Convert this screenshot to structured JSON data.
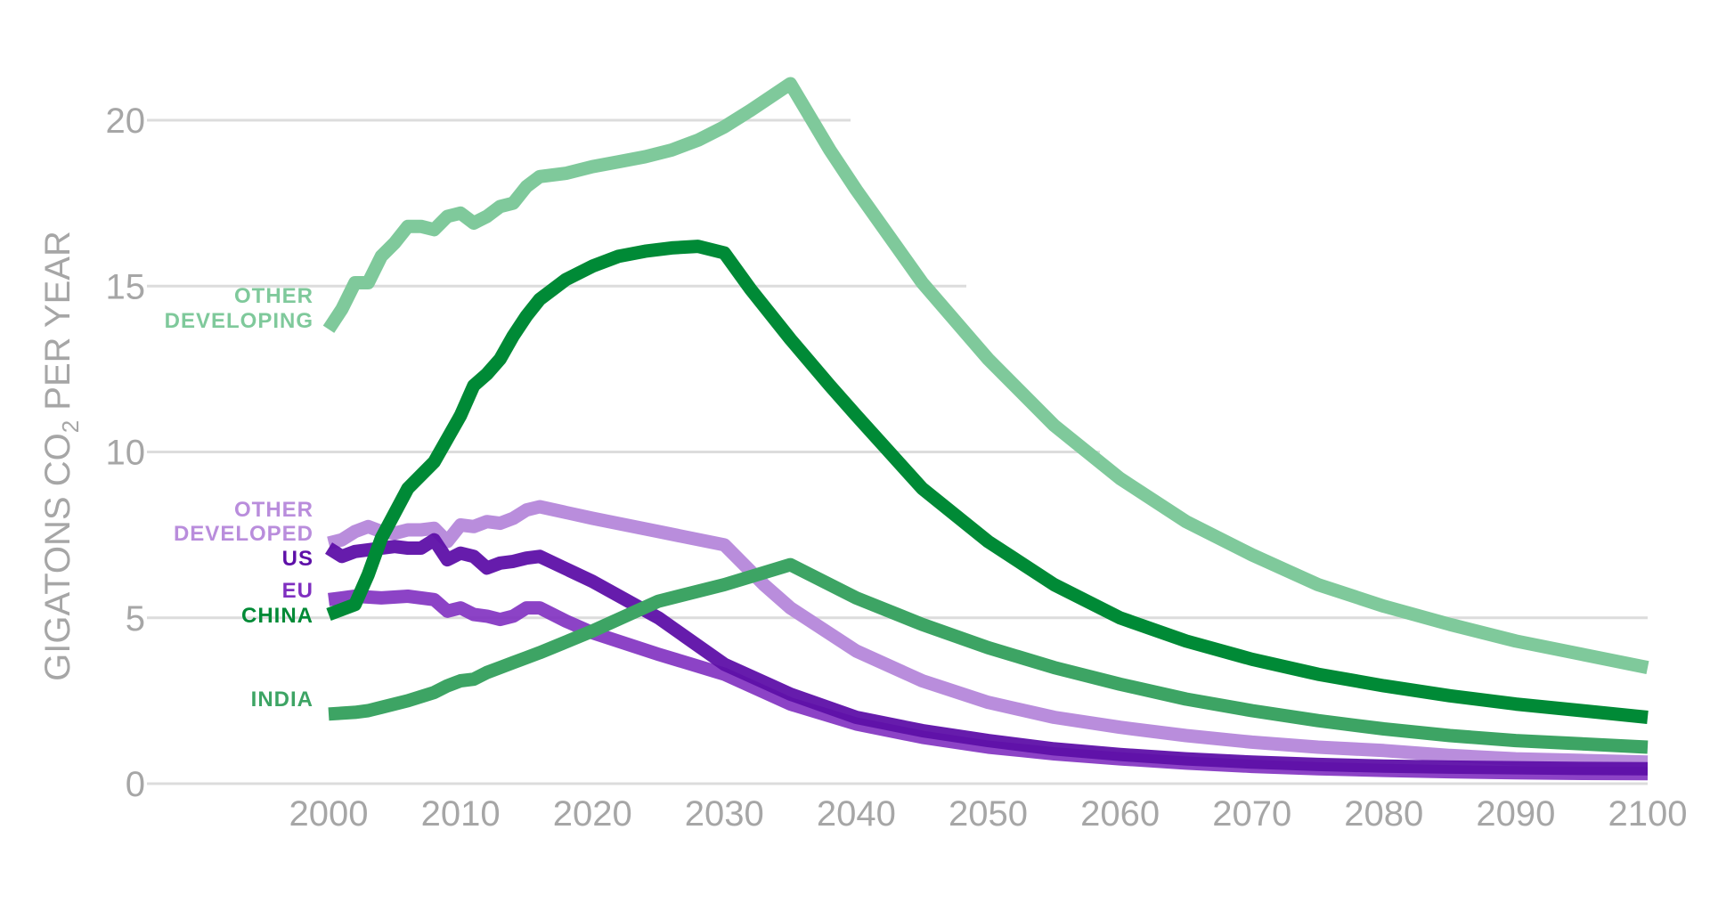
{
  "chart_data": {
    "type": "line",
    "title": "",
    "xlabel": "",
    "ylabel_parts": [
      "GIGATONS CO",
      "2",
      " PER YEAR"
    ],
    "xlim": [
      1980,
      2100
    ],
    "ylim": [
      0,
      21.5
    ],
    "xticks": [
      2000,
      2010,
      2020,
      2030,
      2040,
      2050,
      2060,
      2070,
      2080,
      2090,
      2100
    ],
    "yticks": [
      0,
      5,
      10,
      15,
      20
    ],
    "grid": "horizontal",
    "series": [
      {
        "key": "other-developing",
        "label_lines": [
          "OTHER",
          "DEVELOPING"
        ],
        "color": "#7fc99b",
        "opacity": 1,
        "points": [
          [
            2000,
            13.7
          ],
          [
            2001,
            14.3
          ],
          [
            2002,
            15.1
          ],
          [
            2003,
            15.1
          ],
          [
            2004,
            15.9
          ],
          [
            2005,
            16.3
          ],
          [
            2006,
            16.8
          ],
          [
            2007,
            16.8
          ],
          [
            2008,
            16.7
          ],
          [
            2009,
            17.1
          ],
          [
            2010,
            17.2
          ],
          [
            2011,
            16.9
          ],
          [
            2012,
            17.1
          ],
          [
            2013,
            17.4
          ],
          [
            2014,
            17.5
          ],
          [
            2015,
            18.0
          ],
          [
            2016,
            18.3
          ],
          [
            2018,
            18.4
          ],
          [
            2020,
            18.6
          ],
          [
            2022,
            18.75
          ],
          [
            2024,
            18.9
          ],
          [
            2026,
            19.1
          ],
          [
            2028,
            19.4
          ],
          [
            2030,
            19.8
          ],
          [
            2032,
            20.3
          ],
          [
            2035,
            21.1
          ],
          [
            2038,
            19.1
          ],
          [
            2040,
            17.9
          ],
          [
            2045,
            15.1
          ],
          [
            2050,
            12.8
          ],
          [
            2055,
            10.8
          ],
          [
            2060,
            9.2
          ],
          [
            2065,
            7.9
          ],
          [
            2070,
            6.9
          ],
          [
            2075,
            6.0
          ],
          [
            2080,
            5.35
          ],
          [
            2085,
            4.8
          ],
          [
            2090,
            4.3
          ],
          [
            2095,
            3.9
          ],
          [
            2100,
            3.5
          ]
        ]
      },
      {
        "key": "other-developed",
        "label_lines": [
          "OTHER",
          "DEVELOPED"
        ],
        "color": "#b98ddc",
        "opacity": 1,
        "points": [
          [
            2000,
            7.25
          ],
          [
            2001,
            7.35
          ],
          [
            2002,
            7.6
          ],
          [
            2003,
            7.75
          ],
          [
            2004,
            7.6
          ],
          [
            2005,
            7.55
          ],
          [
            2006,
            7.65
          ],
          [
            2007,
            7.65
          ],
          [
            2008,
            7.7
          ],
          [
            2009,
            7.3
          ],
          [
            2010,
            7.8
          ],
          [
            2011,
            7.75
          ],
          [
            2012,
            7.9
          ],
          [
            2013,
            7.85
          ],
          [
            2014,
            8.0
          ],
          [
            2015,
            8.25
          ],
          [
            2016,
            8.35
          ],
          [
            2020,
            8.0
          ],
          [
            2025,
            7.6
          ],
          [
            2030,
            7.2
          ],
          [
            2033,
            6.0
          ],
          [
            2035,
            5.3
          ],
          [
            2040,
            4.0
          ],
          [
            2045,
            3.1
          ],
          [
            2050,
            2.45
          ],
          [
            2055,
            2.0
          ],
          [
            2060,
            1.7
          ],
          [
            2065,
            1.45
          ],
          [
            2070,
            1.25
          ],
          [
            2075,
            1.1
          ],
          [
            2080,
            1.0
          ],
          [
            2085,
            0.85
          ],
          [
            2090,
            0.75
          ],
          [
            2095,
            0.7
          ],
          [
            2100,
            0.65
          ]
        ]
      },
      {
        "key": "eu",
        "label_lines": [
          "EU"
        ],
        "color": "#7f2fc0",
        "opacity": 0.9,
        "points": [
          [
            2000,
            5.55
          ],
          [
            2001,
            5.6
          ],
          [
            2002,
            5.65
          ],
          [
            2004,
            5.6
          ],
          [
            2006,
            5.65
          ],
          [
            2008,
            5.55
          ],
          [
            2009,
            5.2
          ],
          [
            2010,
            5.3
          ],
          [
            2011,
            5.1
          ],
          [
            2012,
            5.05
          ],
          [
            2013,
            4.95
          ],
          [
            2014,
            5.05
          ],
          [
            2015,
            5.3
          ],
          [
            2016,
            5.3
          ],
          [
            2018,
            4.9
          ],
          [
            2020,
            4.55
          ],
          [
            2025,
            3.9
          ],
          [
            2030,
            3.3
          ],
          [
            2035,
            2.4
          ],
          [
            2040,
            1.8
          ],
          [
            2045,
            1.4
          ],
          [
            2050,
            1.1
          ],
          [
            2055,
            0.9
          ],
          [
            2060,
            0.75
          ],
          [
            2065,
            0.62
          ],
          [
            2070,
            0.52
          ],
          [
            2075,
            0.45
          ],
          [
            2080,
            0.4
          ],
          [
            2085,
            0.36
          ],
          [
            2090,
            0.33
          ],
          [
            2095,
            0.31
          ],
          [
            2100,
            0.3
          ]
        ]
      },
      {
        "key": "us",
        "label_lines": [
          "US"
        ],
        "color": "#5e10a8",
        "opacity": 0.95,
        "points": [
          [
            2000,
            7.1
          ],
          [
            2001,
            6.85
          ],
          [
            2002,
            7.0
          ],
          [
            2003,
            7.05
          ],
          [
            2004,
            7.1
          ],
          [
            2005,
            7.15
          ],
          [
            2006,
            7.1
          ],
          [
            2007,
            7.1
          ],
          [
            2008,
            7.35
          ],
          [
            2009,
            6.75
          ],
          [
            2010,
            6.95
          ],
          [
            2011,
            6.85
          ],
          [
            2012,
            6.5
          ],
          [
            2013,
            6.65
          ],
          [
            2014,
            6.7
          ],
          [
            2015,
            6.8
          ],
          [
            2016,
            6.85
          ],
          [
            2020,
            6.1
          ],
          [
            2025,
            5.0
          ],
          [
            2030,
            3.6
          ],
          [
            2035,
            2.7
          ],
          [
            2040,
            2.0
          ],
          [
            2045,
            1.6
          ],
          [
            2050,
            1.3
          ],
          [
            2055,
            1.05
          ],
          [
            2060,
            0.88
          ],
          [
            2065,
            0.75
          ],
          [
            2070,
            0.65
          ],
          [
            2075,
            0.58
          ],
          [
            2080,
            0.53
          ],
          [
            2085,
            0.5
          ],
          [
            2090,
            0.48
          ],
          [
            2095,
            0.46
          ],
          [
            2100,
            0.45
          ]
        ]
      },
      {
        "key": "china",
        "label_lines": [
          "CHINA"
        ],
        "color": "#008a36",
        "opacity": 1,
        "points": [
          [
            2000,
            5.1
          ],
          [
            2002,
            5.4
          ],
          [
            2003,
            6.3
          ],
          [
            2004,
            7.4
          ],
          [
            2006,
            8.9
          ],
          [
            2008,
            9.7
          ],
          [
            2010,
            11.1
          ],
          [
            2011,
            12.0
          ],
          [
            2012,
            12.35
          ],
          [
            2013,
            12.8
          ],
          [
            2014,
            13.5
          ],
          [
            2015,
            14.1
          ],
          [
            2016,
            14.6
          ],
          [
            2018,
            15.2
          ],
          [
            2020,
            15.6
          ],
          [
            2022,
            15.9
          ],
          [
            2024,
            16.05
          ],
          [
            2026,
            16.15
          ],
          [
            2028,
            16.2
          ],
          [
            2030,
            16.0
          ],
          [
            2032,
            14.9
          ],
          [
            2035,
            13.4
          ],
          [
            2038,
            12.0
          ],
          [
            2040,
            11.1
          ],
          [
            2045,
            8.9
          ],
          [
            2050,
            7.3
          ],
          [
            2055,
            6.0
          ],
          [
            2060,
            5.0
          ],
          [
            2065,
            4.3
          ],
          [
            2070,
            3.75
          ],
          [
            2075,
            3.3
          ],
          [
            2080,
            2.95
          ],
          [
            2085,
            2.65
          ],
          [
            2090,
            2.4
          ],
          [
            2095,
            2.2
          ],
          [
            2100,
            2.0
          ]
        ]
      },
      {
        "key": "india",
        "label_lines": [
          "INDIA"
        ],
        "color": "#3da464",
        "opacity": 1,
        "points": [
          [
            2000,
            2.1
          ],
          [
            2002,
            2.15
          ],
          [
            2003,
            2.2
          ],
          [
            2004,
            2.3
          ],
          [
            2006,
            2.5
          ],
          [
            2008,
            2.75
          ],
          [
            2009,
            2.95
          ],
          [
            2010,
            3.1
          ],
          [
            2011,
            3.15
          ],
          [
            2012,
            3.35
          ],
          [
            2013,
            3.5
          ],
          [
            2014,
            3.65
          ],
          [
            2015,
            3.8
          ],
          [
            2016,
            3.95
          ],
          [
            2020,
            4.6
          ],
          [
            2025,
            5.5
          ],
          [
            2030,
            6.0
          ],
          [
            2035,
            6.6
          ],
          [
            2040,
            5.6
          ],
          [
            2045,
            4.8
          ],
          [
            2050,
            4.1
          ],
          [
            2055,
            3.5
          ],
          [
            2060,
            3.0
          ],
          [
            2065,
            2.55
          ],
          [
            2070,
            2.2
          ],
          [
            2075,
            1.9
          ],
          [
            2080,
            1.65
          ],
          [
            2085,
            1.45
          ],
          [
            2090,
            1.3
          ],
          [
            2095,
            1.2
          ],
          [
            2100,
            1.1
          ]
        ]
      }
    ]
  }
}
